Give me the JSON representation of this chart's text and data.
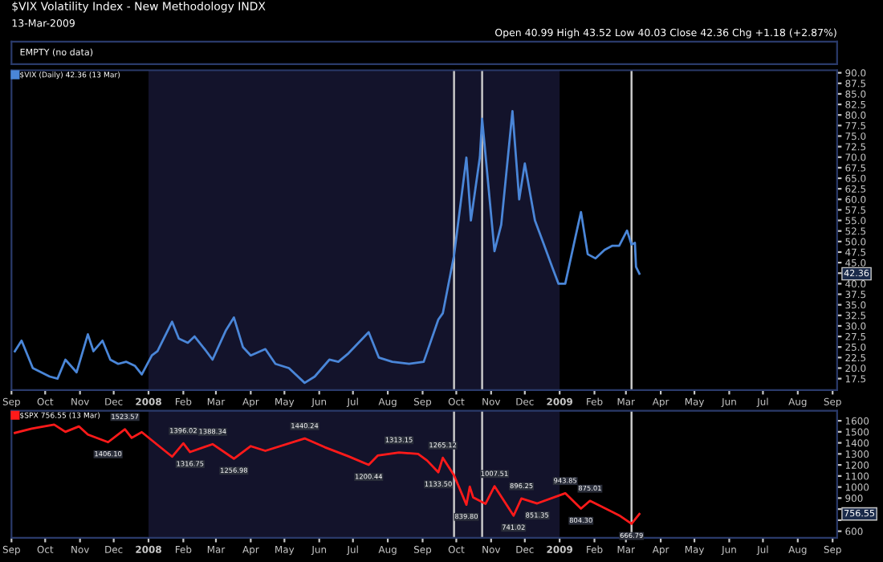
{
  "chart_data": [
    {
      "type": "other",
      "title": "$VIX Volatility Index - New Methodology INDX",
      "subtitle": "13-Mar-2009",
      "annotations": [
        "Open 40.99 High 43.52 Low 40.03 Close 42.36 Chg +1.18 (+2.87%)",
        "EMPTY (no data)"
      ]
    },
    {
      "type": "line",
      "legend": "top left",
      "xlim": [
        "2007-09-01",
        "2009-09-05"
      ],
      "xticks": [
        {
          "value": "2007-09-01",
          "label": "Sep"
        },
        {
          "value": "2007-10-01",
          "label": "Oct"
        },
        {
          "value": "2007-11-01",
          "label": "Nov"
        },
        {
          "value": "2007-12-01",
          "label": "Dec"
        },
        {
          "value": "2008-01-01",
          "label": "2008"
        },
        {
          "value": "2008-02-01",
          "label": "Feb"
        },
        {
          "value": "2008-03-01",
          "label": "Mar"
        },
        {
          "value": "2008-04-01",
          "label": "Apr"
        },
        {
          "value": "2008-05-01",
          "label": "May"
        },
        {
          "value": "2008-06-01",
          "label": "Jun"
        },
        {
          "value": "2008-07-01",
          "label": "Jul"
        },
        {
          "value": "2008-08-01",
          "label": "Aug"
        },
        {
          "value": "2008-09-01",
          "label": "Sep"
        },
        {
          "value": "2008-10-01",
          "label": "Oct"
        },
        {
          "value": "2008-11-01",
          "label": "Nov"
        },
        {
          "value": "2008-12-01",
          "label": "Dec"
        },
        {
          "value": "2009-01-01",
          "label": "2009"
        },
        {
          "value": "2009-02-01",
          "label": "Feb"
        },
        {
          "value": "2009-03-01",
          "label": "Mar"
        },
        {
          "value": "2009-04-01",
          "label": "Apr"
        },
        {
          "value": "2009-05-01",
          "label": "May"
        },
        {
          "value": "2009-06-01",
          "label": "Jun"
        },
        {
          "value": "2009-07-01",
          "label": "Jul"
        },
        {
          "value": "2009-08-01",
          "label": "Aug"
        },
        {
          "value": "2009-09-01",
          "label": "Sep"
        }
      ],
      "ylim": [
        14.8,
        90.6
      ],
      "yticks": [
        {
          "value": 17.5,
          "label": "17.5"
        },
        {
          "value": 20,
          "label": "20.0"
        },
        {
          "value": 22.5,
          "label": "22.5"
        },
        {
          "value": 25,
          "label": "25.0"
        },
        {
          "value": 27.5,
          "label": "27.5"
        },
        {
          "value": 30,
          "label": "30.0"
        },
        {
          "value": 32.5,
          "label": "32.5"
        },
        {
          "value": 35,
          "label": "35.0"
        },
        {
          "value": 37.5,
          "label": "37.5"
        },
        {
          "value": 40,
          "label": "40.0"
        },
        {
          "value": 42.5,
          "label": null
        },
        {
          "value": 45,
          "label": "45.0"
        },
        {
          "value": 47.5,
          "label": "47.5"
        },
        {
          "value": 50,
          "label": "50.0"
        },
        {
          "value": 52.5,
          "label": "52.5"
        },
        {
          "value": 55,
          "label": "55.0"
        },
        {
          "value": 57.5,
          "label": "57.5"
        },
        {
          "value": 60,
          "label": "60.0"
        },
        {
          "value": 62.5,
          "label": "62.5"
        },
        {
          "value": 65,
          "label": "65.0"
        },
        {
          "value": 67.5,
          "label": "67.5"
        },
        {
          "value": 70,
          "label": "70.0"
        },
        {
          "value": 72.5,
          "label": "72.5"
        },
        {
          "value": 75,
          "label": "75.0"
        },
        {
          "value": 77.5,
          "label": "77.5"
        },
        {
          "value": 80,
          "label": "80.0"
        },
        {
          "value": 82.5,
          "label": "82.5"
        },
        {
          "value": 85,
          "label": "85.0"
        },
        {
          "value": 87.5,
          "label": "87.5"
        },
        {
          "value": 90,
          "label": "90.0"
        }
      ],
      "bands": [
        {
          "axis": "x",
          "from": "2008-01-01",
          "to": "2009-01-01",
          "color": "#13132b"
        }
      ],
      "ref_lines": [
        {
          "axis": "x",
          "value": "2008-09-29",
          "color": "#c8c8c8"
        },
        {
          "axis": "x",
          "value": "2008-10-24",
          "color": "#c8c8c8"
        },
        {
          "axis": "x",
          "value": "2009-03-06",
          "color": "#c8c8c8"
        }
      ],
      "annotations": [
        "42.36"
      ],
      "series": [
        {
          "name": "$VIX (Daily) 42.36 (13 Mar)",
          "color": "#4a86d8",
          "x": [
            "2007-09-04",
            "2007-09-10",
            "2007-09-20",
            "2007-10-05",
            "2007-10-12",
            "2007-10-19",
            "2007-10-29",
            "2007-11-08",
            "2007-11-13",
            "2007-11-21",
            "2007-11-28",
            "2007-12-05",
            "2007-12-12",
            "2007-12-20",
            "2007-12-26",
            "2008-01-04",
            "2008-01-09",
            "2008-01-22",
            "2008-01-28",
            "2008-02-05",
            "2008-02-11",
            "2008-02-20",
            "2008-02-27",
            "2008-03-10",
            "2008-03-17",
            "2008-03-25",
            "2008-04-01",
            "2008-04-14",
            "2008-04-23",
            "2008-05-05",
            "2008-05-19",
            "2008-05-28",
            "2008-06-10",
            "2008-06-18",
            "2008-06-27",
            "2008-07-15",
            "2008-07-24",
            "2008-08-05",
            "2008-08-20",
            "2008-09-02",
            "2008-09-15",
            "2008-09-19",
            "2008-09-29",
            "2008-10-10",
            "2008-10-14",
            "2008-10-22",
            "2008-10-24",
            "2008-10-30",
            "2008-11-04",
            "2008-11-10",
            "2008-11-20",
            "2008-11-26",
            "2008-12-01",
            "2008-12-10",
            "2008-12-17",
            "2008-12-26",
            "2008-12-31",
            "2009-01-06",
            "2009-01-15",
            "2009-01-20",
            "2009-01-26",
            "2009-02-02",
            "2009-02-10",
            "2009-02-17",
            "2009-02-23",
            "2009-03-02",
            "2009-03-06",
            "2009-03-09",
            "2009-03-10",
            "2009-03-13"
          ],
          "values": [
            24,
            26.5,
            20,
            18,
            17.5,
            22,
            19,
            28,
            24,
            26.5,
            22,
            21,
            21.5,
            20.5,
            18.5,
            23,
            24,
            31,
            27,
            26,
            27.5,
            24.5,
            22,
            29,
            32,
            25,
            23,
            24.5,
            21,
            20,
            16.5,
            18,
            22,
            21.5,
            23.5,
            28.5,
            22.5,
            21.5,
            21,
            21.5,
            31.5,
            33,
            46.7,
            69.9,
            55,
            70,
            79.1,
            62,
            47.7,
            54,
            80.9,
            60,
            68.5,
            55,
            50,
            43.5,
            40,
            40,
            51,
            57,
            47,
            46,
            48,
            49,
            49,
            52.6,
            49.3,
            49.7,
            44,
            42.36
          ]
        }
      ]
    },
    {
      "type": "line",
      "legend": "top left",
      "xlim": [
        "2007-09-01",
        "2009-09-05"
      ],
      "xticks": [
        {
          "value": "2007-09-01",
          "label": "Sep"
        },
        {
          "value": "2007-10-01",
          "label": "Oct"
        },
        {
          "value": "2007-11-01",
          "label": "Nov"
        },
        {
          "value": "2007-12-01",
          "label": "Dec"
        },
        {
          "value": "2008-01-01",
          "label": "2008"
        },
        {
          "value": "2008-02-01",
          "label": "Feb"
        },
        {
          "value": "2008-03-01",
          "label": "Mar"
        },
        {
          "value": "2008-04-01",
          "label": "Apr"
        },
        {
          "value": "2008-05-01",
          "label": "May"
        },
        {
          "value": "2008-06-01",
          "label": "Jun"
        },
        {
          "value": "2008-07-01",
          "label": "Jul"
        },
        {
          "value": "2008-08-01",
          "label": "Aug"
        },
        {
          "value": "2008-09-01",
          "label": "Sep"
        },
        {
          "value": "2008-10-01",
          "label": "Oct"
        },
        {
          "value": "2008-11-01",
          "label": "Nov"
        },
        {
          "value": "2008-12-01",
          "label": "Dec"
        },
        {
          "value": "2009-01-01",
          "label": "2009"
        },
        {
          "value": "2009-02-01",
          "label": "Feb"
        },
        {
          "value": "2009-03-01",
          "label": "Mar"
        },
        {
          "value": "2009-04-01",
          "label": "Apr"
        },
        {
          "value": "2009-05-01",
          "label": "May"
        },
        {
          "value": "2009-06-01",
          "label": "Jun"
        },
        {
          "value": "2009-07-01",
          "label": "Jul"
        },
        {
          "value": "2009-08-01",
          "label": "Aug"
        },
        {
          "value": "2009-09-01",
          "label": "Sep"
        }
      ],
      "ylim": [
        540,
        1690
      ],
      "yticks": [
        600,
        {
          "value": 700,
          "label": null
        },
        {
          "value": 800,
          "label": null
        },
        900,
        1000,
        1100,
        1200,
        1300,
        1400,
        1500,
        1600
      ],
      "bands": [
        {
          "axis": "x",
          "from": "2008-01-01",
          "to": "2009-01-01",
          "color": "#13132b"
        }
      ],
      "ref_lines": [
        {
          "axis": "x",
          "value": "2008-09-29",
          "color": "#c8c8c8"
        },
        {
          "axis": "x",
          "value": "2008-10-24",
          "color": "#c8c8c8"
        },
        {
          "axis": "x",
          "value": "2009-03-06",
          "color": "#c8c8c8"
        }
      ],
      "annotations": [
        {
          "text": "1406.10",
          "x": "2007-11-26",
          "y": 1406.1
        },
        {
          "text": "1523.57",
          "x": "2007-12-11",
          "y": 1523.57
        },
        {
          "text": "1396.02",
          "x": "2008-02-01",
          "y": 1396.02
        },
        {
          "text": "1316.75",
          "x": "2008-02-07",
          "y": 1316.75
        },
        {
          "text": "1388.34",
          "x": "2008-02-27",
          "y": 1388.34
        },
        {
          "text": "1256.98",
          "x": "2008-03-17",
          "y": 1256.98
        },
        {
          "text": "1440.24",
          "x": "2008-05-19",
          "y": 1440.24
        },
        {
          "text": "1200.44",
          "x": "2008-07-15",
          "y": 1200.44
        },
        {
          "text": "1313.15",
          "x": "2008-08-11",
          "y": 1313.15
        },
        {
          "text": "1133.50",
          "x": "2008-09-15",
          "y": 1133.5
        },
        {
          "text": "1265.12",
          "x": "2008-09-19",
          "y": 1265.12
        },
        {
          "text": "839.80",
          "x": "2008-10-10",
          "y": 839.8
        },
        {
          "text": "1007.51",
          "x": "2008-11-04",
          "y": 1007.51
        },
        {
          "text": "741.02",
          "x": "2008-11-21",
          "y": 741.02
        },
        {
          "text": "896.25",
          "x": "2008-11-28",
          "y": 896.25
        },
        {
          "text": "851.35",
          "x": "2008-12-12",
          "y": 851.35
        },
        {
          "text": "943.85",
          "x": "2009-01-06",
          "y": 943.85
        },
        {
          "text": "804.30",
          "x": "2009-01-20",
          "y": 804.3
        },
        {
          "text": "875.01",
          "x": "2009-01-28",
          "y": 875.01
        },
        {
          "text": "666.79",
          "x": "2009-03-06",
          "y": 666.79
        },
        "756.55"
      ],
      "series": [
        {
          "name": "$SPX 756.55 (13 Mar)",
          "color": "#ff1a1a",
          "x": [
            "2007-09-04",
            "2007-09-19",
            "2007-10-09",
            "2007-10-19",
            "2007-10-31",
            "2007-11-08",
            "2007-11-26",
            "2007-12-11",
            "2007-12-17",
            "2007-12-26",
            "2008-01-08",
            "2008-01-22",
            "2008-02-01",
            "2008-02-07",
            "2008-02-27",
            "2008-03-17",
            "2008-04-01",
            "2008-04-14",
            "2008-05-19",
            "2008-06-06",
            "2008-06-27",
            "2008-07-15",
            "2008-07-23",
            "2008-08-11",
            "2008-08-28",
            "2008-09-05",
            "2008-09-15",
            "2008-09-19",
            "2008-09-29",
            "2008-10-10",
            "2008-10-13",
            "2008-10-16",
            "2008-10-27",
            "2008-11-04",
            "2008-11-21",
            "2008-11-28",
            "2008-12-12",
            "2009-01-06",
            "2009-01-20",
            "2009-01-28",
            "2009-02-23",
            "2009-03-06",
            "2009-03-13"
          ],
          "values": [
            1490,
            1529,
            1565,
            1500,
            1549,
            1475,
            1406.1,
            1523.57,
            1445,
            1497,
            1390,
            1275,
            1396.02,
            1316.75,
            1388.34,
            1256.98,
            1370,
            1328,
            1440.24,
            1360,
            1278,
            1200.44,
            1285,
            1313.15,
            1300,
            1240,
            1133.5,
            1265.12,
            1106,
            839.8,
            1003,
            907,
            848,
            1007.51,
            741.02,
            896.25,
            851.35,
            943.85,
            804.3,
            875.01,
            743,
            666.79,
            756.55
          ]
        }
      ]
    }
  ]
}
